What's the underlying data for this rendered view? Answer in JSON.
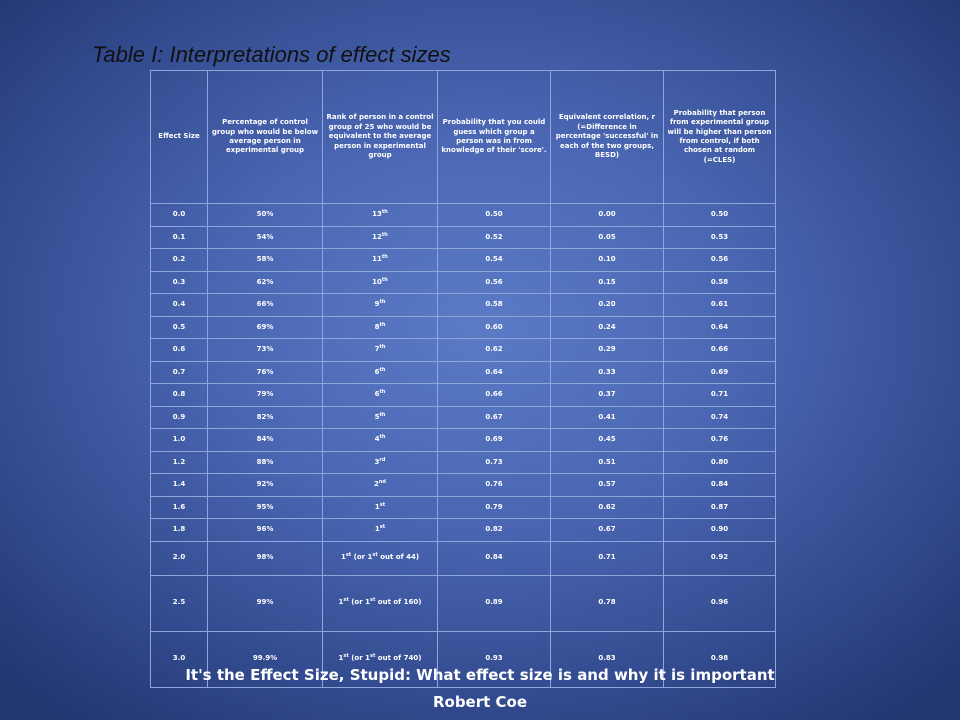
{
  "slide": {
    "title": "Table I: Interpretations of effect sizes",
    "footer_title": "It's the Effect Size, Stupid: What effect size is and why it is important",
    "footer_author": "Robert Coe"
  },
  "table": {
    "headers": [
      "Effect Size",
      "Percentage of control group who would be below average person in experimental group",
      "Rank of person in a control group of 25 who would be equivalent to the average person in experimental group",
      "Probability that you could guess which group a person was in from knowledge of their 'score'.",
      "Equivalent correlation, r (=Difference in percentage 'successful' in each of the two groups, BESD)",
      "Probability that person from experimental group will be higher than person from control, if both chosen at random (=CLES)"
    ],
    "rows": [
      {
        "es": "0.0",
        "pct": "50%",
        "rank": "13",
        "sup": "th",
        "tail": "",
        "prob": "0.50",
        "r": "0.00",
        "cles": "0.50"
      },
      {
        "es": "0.1",
        "pct": "54%",
        "rank": "12",
        "sup": "th",
        "tail": "",
        "prob": "0.52",
        "r": "0.05",
        "cles": "0.53"
      },
      {
        "es": "0.2",
        "pct": "58%",
        "rank": "11",
        "sup": "th",
        "tail": "",
        "prob": "0.54",
        "r": "0.10",
        "cles": "0.56"
      },
      {
        "es": "0.3",
        "pct": "62%",
        "rank": "10",
        "sup": "th",
        "tail": "",
        "prob": "0.56",
        "r": "0.15",
        "cles": "0.58"
      },
      {
        "es": "0.4",
        "pct": "66%",
        "rank": "9",
        "sup": "th",
        "tail": "",
        "prob": "0.58",
        "r": "0.20",
        "cles": "0.61"
      },
      {
        "es": "0.5",
        "pct": "69%",
        "rank": "8",
        "sup": "th",
        "tail": "",
        "prob": "0.60",
        "r": "0.24",
        "cles": "0.64"
      },
      {
        "es": "0.6",
        "pct": "73%",
        "rank": "7",
        "sup": "th",
        "tail": "",
        "prob": "0.62",
        "r": "0.29",
        "cles": "0.66"
      },
      {
        "es": "0.7",
        "pct": "76%",
        "rank": "6",
        "sup": "th",
        "tail": "",
        "prob": "0.64",
        "r": "0.33",
        "cles": "0.69"
      },
      {
        "es": "0.8",
        "pct": "79%",
        "rank": "6",
        "sup": "th",
        "tail": "",
        "prob": "0.66",
        "r": "0.37",
        "cles": "0.71"
      },
      {
        "es": "0.9",
        "pct": "82%",
        "rank": "5",
        "sup": "th",
        "tail": "",
        "prob": "0.67",
        "r": "0.41",
        "cles": "0.74"
      },
      {
        "es": "1.0",
        "pct": "84%",
        "rank": "4",
        "sup": "th",
        "tail": "",
        "prob": "0.69",
        "r": "0.45",
        "cles": "0.76"
      },
      {
        "es": "1.2",
        "pct": "88%",
        "rank": "3",
        "sup": "rd",
        "tail": "",
        "prob": "0.73",
        "r": "0.51",
        "cles": "0.80"
      },
      {
        "es": "1.4",
        "pct": "92%",
        "rank": "2",
        "sup": "nd",
        "tail": "",
        "prob": "0.76",
        "r": "0.57",
        "cles": "0.84"
      },
      {
        "es": "1.6",
        "pct": "95%",
        "rank": "1",
        "sup": "st",
        "tail": "",
        "prob": "0.79",
        "r": "0.62",
        "cles": "0.87"
      },
      {
        "es": "1.8",
        "pct": "96%",
        "rank": "1",
        "sup": "st",
        "tail": "",
        "prob": "0.82",
        "r": "0.67",
        "cles": "0.90"
      },
      {
        "es": "2.0",
        "pct": "98%",
        "rank": "1",
        "sup": "st",
        "tail": " (or 1",
        "sup2": "st",
        "tail2": " out of 44)",
        "prob": "0.84",
        "r": "0.71",
        "cles": "0.92"
      },
      {
        "es": "2.5",
        "pct": "99%",
        "rank": "1",
        "sup": "st",
        "tail": " (or 1",
        "sup2": "st",
        "tail2": " out of 160)",
        "prob": "0.89",
        "r": "0.78",
        "cles": "0.96"
      },
      {
        "es": "3.0",
        "pct": "99.9%",
        "rank": "1",
        "sup": "st",
        "tail": " (or 1",
        "sup2": "st",
        "tail2": " out of 740)",
        "prob": "0.93",
        "r": "0.83",
        "cles": "0.98"
      }
    ]
  }
}
